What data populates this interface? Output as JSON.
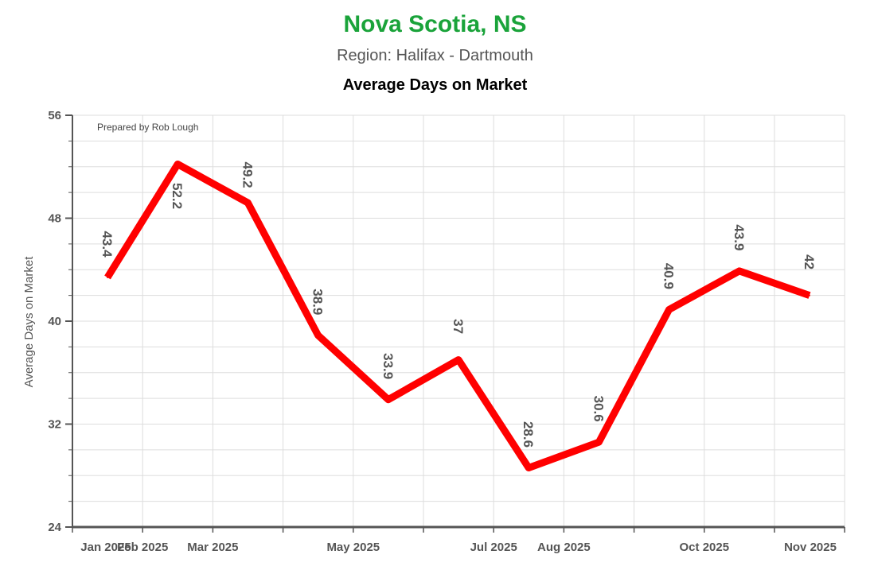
{
  "header": {
    "title": "Nova Scotia, NS",
    "subtitle": "Region: Halifax - Dartmouth",
    "chart_title": "Average Days on Market",
    "credit": "Prepared by Rob Lough"
  },
  "colors": {
    "title": "#1aa33a",
    "line": "#ff0000",
    "grid": "#dddddd",
    "axis": "#555555"
  },
  "chart_data": {
    "type": "line",
    "title": "Average Days on Market",
    "xlabel": "",
    "ylabel": "Average Days on Market",
    "ylim": [
      24,
      56
    ],
    "yticks": [
      24,
      32,
      40,
      48,
      56
    ],
    "grid": true,
    "x_tick_labels": [
      "Jan 2025",
      "Feb 2025",
      "Mar 2025",
      "May 2025",
      "Jul 2025",
      "Aug 2025",
      "Oct 2025",
      "Nov 2025"
    ],
    "series": [
      {
        "values": [
          43.4,
          52.2,
          49.2,
          38.9,
          33.9,
          37,
          28.6,
          30.6,
          40.9,
          43.9,
          42
        ]
      }
    ],
    "data_labels": [
      "43.4",
      "52.2",
      "49.2",
      "38.9",
      "33.9",
      "37",
      "28.6",
      "30.6",
      "40.9",
      "43.9",
      "42"
    ]
  }
}
